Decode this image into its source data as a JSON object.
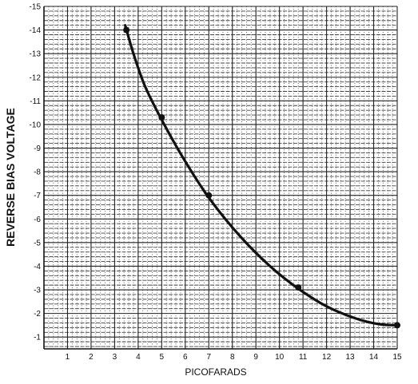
{
  "chart_data": {
    "type": "line",
    "title": "",
    "xlabel": "PICOFARADS",
    "ylabel": "REVERSE BIAS VOLTAGE",
    "xlim": [
      0,
      15
    ],
    "ylim": [
      -0.5,
      -15
    ],
    "x_ticks": [
      1,
      2,
      3,
      4,
      5,
      6,
      7,
      8,
      9,
      10,
      11,
      12,
      13,
      14,
      15
    ],
    "x_tick_labels": [
      "1",
      "2",
      "3",
      "4",
      "5",
      "6",
      "7",
      "8",
      "9",
      "10",
      "11",
      "12",
      "13",
      "14",
      "15"
    ],
    "y_ticks": [
      -1,
      -2,
      -3,
      -4,
      -5,
      -6,
      -7,
      -8,
      -9,
      -10,
      -11,
      -12,
      -13,
      -14,
      -15
    ],
    "y_tick_labels": [
      "-1",
      "-2",
      "-3",
      "-4",
      "-5",
      "-6",
      "-7",
      "-8",
      "-9",
      "-10",
      "-11",
      "-12",
      "-13",
      "-14",
      "-15"
    ],
    "grid": true,
    "series": [
      {
        "curve": [
          {
            "x": 3.45,
            "y": -14.2
          },
          {
            "x": 3.8,
            "y": -13.0
          },
          {
            "x": 4.3,
            "y": -11.6
          },
          {
            "x": 5.0,
            "y": -10.2
          },
          {
            "x": 5.9,
            "y": -8.6
          },
          {
            "x": 7.0,
            "y": -6.9
          },
          {
            "x": 8.3,
            "y": -5.3
          },
          {
            "x": 9.6,
            "y": -4.0
          },
          {
            "x": 10.8,
            "y": -3.05
          },
          {
            "x": 12.0,
            "y": -2.3
          },
          {
            "x": 13.2,
            "y": -1.8
          },
          {
            "x": 14.2,
            "y": -1.55
          },
          {
            "x": 15.0,
            "y": -1.5
          }
        ],
        "markers": [
          {
            "x": 3.5,
            "y": -14.0
          },
          {
            "x": 5.0,
            "y": -10.3
          },
          {
            "x": 7.0,
            "y": -7.0
          },
          {
            "x": 10.8,
            "y": -3.1
          },
          {
            "x": 15.0,
            "y": -1.5
          }
        ]
      }
    ]
  }
}
